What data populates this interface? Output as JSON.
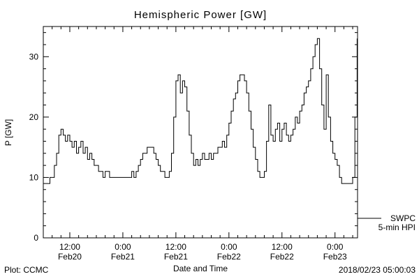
{
  "title": "Hemispheric Power [GW]",
  "footer": {
    "left": "Plot: CCMC",
    "right": "2018/02/23 05:00:03"
  },
  "legend": {
    "line1": "SWPC",
    "line2": "5-min HPI"
  },
  "colors": {
    "line": "#000000",
    "background": "#ffffff",
    "axis": "#000000"
  },
  "chart_data": {
    "type": "line",
    "title": "Hemispheric Power [GW]",
    "xlabel": "Date and Time",
    "ylabel": "P [GW]",
    "ylim": [
      0,
      35
    ],
    "xlim": [
      6,
      77.1
    ],
    "yticks": [
      0,
      10,
      20,
      30
    ],
    "xticks": [
      {
        "x": 12,
        "time": "12:00",
        "date": "Feb20"
      },
      {
        "x": 24,
        "time": "0:00",
        "date": "Feb21"
      },
      {
        "x": 36,
        "time": "12:00",
        "date": "Feb21"
      },
      {
        "x": 48,
        "time": "0:00",
        "date": "Feb22"
      },
      {
        "x": 60,
        "time": "12:00",
        "date": "Feb22"
      },
      {
        "x": 72,
        "time": "0:00",
        "date": "Feb23"
      }
    ],
    "x_unit": "hours since 2018/02/20 00:00 UT",
    "y_unit": "GW",
    "points": [
      [
        6,
        9
      ],
      [
        6.5,
        9
      ],
      [
        7,
        9
      ],
      [
        7.5,
        10
      ],
      [
        8,
        10
      ],
      [
        8.5,
        12
      ],
      [
        9,
        14
      ],
      [
        9.5,
        17
      ],
      [
        10,
        18
      ],
      [
        10.5,
        17
      ],
      [
        11,
        16
      ],
      [
        11.5,
        17
      ],
      [
        12,
        16
      ],
      [
        12.5,
        15
      ],
      [
        13,
        16
      ],
      [
        13.5,
        14
      ],
      [
        14,
        15
      ],
      [
        14.5,
        16
      ],
      [
        15,
        14
      ],
      [
        15.5,
        15
      ],
      [
        16,
        13
      ],
      [
        16.5,
        14
      ],
      [
        17,
        13
      ],
      [
        17.5,
        12
      ],
      [
        18,
        12
      ],
      [
        18.5,
        11
      ],
      [
        19,
        11
      ],
      [
        19.5,
        10
      ],
      [
        20,
        11
      ],
      [
        20.5,
        11
      ],
      [
        21,
        10
      ],
      [
        21.5,
        10
      ],
      [
        22,
        10
      ],
      [
        22.5,
        10
      ],
      [
        23,
        10
      ],
      [
        23.5,
        10
      ],
      [
        24,
        10
      ],
      [
        24.5,
        10
      ],
      [
        25,
        10
      ],
      [
        25.5,
        10
      ],
      [
        26,
        11
      ],
      [
        26.5,
        10
      ],
      [
        27,
        11
      ],
      [
        27.5,
        12
      ],
      [
        28,
        13
      ],
      [
        28.5,
        14
      ],
      [
        29,
        14
      ],
      [
        29.5,
        15
      ],
      [
        30,
        15
      ],
      [
        30.5,
        15
      ],
      [
        31,
        14
      ],
      [
        31.5,
        13
      ],
      [
        32,
        12
      ],
      [
        32.5,
        11
      ],
      [
        33,
        11
      ],
      [
        33.5,
        10
      ],
      [
        34,
        10
      ],
      [
        34.5,
        11
      ],
      [
        35,
        14
      ],
      [
        35.5,
        20
      ],
      [
        36,
        26
      ],
      [
        36.5,
        27
      ],
      [
        37,
        24
      ],
      [
        37.5,
        26
      ],
      [
        38,
        25
      ],
      [
        38.5,
        21
      ],
      [
        39,
        17
      ],
      [
        39.5,
        14
      ],
      [
        40,
        12
      ],
      [
        40.5,
        13
      ],
      [
        41,
        12
      ],
      [
        41.5,
        13
      ],
      [
        42,
        14
      ],
      [
        42.5,
        13
      ],
      [
        43,
        13
      ],
      [
        43.5,
        14
      ],
      [
        44,
        13
      ],
      [
        44.5,
        14
      ],
      [
        45,
        14
      ],
      [
        45.5,
        15
      ],
      [
        46,
        15
      ],
      [
        46.5,
        16
      ],
      [
        47,
        15
      ],
      [
        47.5,
        17
      ],
      [
        48,
        19
      ],
      [
        48.5,
        21
      ],
      [
        49,
        23
      ],
      [
        49.5,
        24
      ],
      [
        50,
        26
      ],
      [
        50.5,
        27
      ],
      [
        51,
        27
      ],
      [
        51.5,
        26
      ],
      [
        52,
        24
      ],
      [
        52.5,
        21
      ],
      [
        53,
        18
      ],
      [
        53.5,
        15
      ],
      [
        54,
        13
      ],
      [
        54.5,
        11
      ],
      [
        55,
        10
      ],
      [
        55.5,
        10
      ],
      [
        56,
        11
      ],
      [
        56.5,
        16
      ],
      [
        57,
        22
      ],
      [
        57.5,
        17
      ],
      [
        58,
        16
      ],
      [
        58.5,
        18
      ],
      [
        59,
        19
      ],
      [
        59.5,
        16
      ],
      [
        60,
        18
      ],
      [
        60.5,
        19
      ],
      [
        61,
        17
      ],
      [
        61.5,
        16
      ],
      [
        62,
        17
      ],
      [
        62.5,
        18
      ],
      [
        63,
        20
      ],
      [
        63.5,
        19
      ],
      [
        64,
        21
      ],
      [
        64.5,
        22
      ],
      [
        65,
        24
      ],
      [
        65.5,
        25
      ],
      [
        66,
        26
      ],
      [
        66.5,
        28
      ],
      [
        67,
        30
      ],
      [
        67.5,
        32
      ],
      [
        68,
        33
      ],
      [
        68.5,
        28
      ],
      [
        69,
        22
      ],
      [
        69.5,
        18
      ],
      [
        70,
        27
      ],
      [
        70.5,
        20
      ],
      [
        71,
        16
      ],
      [
        71.5,
        14
      ],
      [
        72,
        13
      ],
      [
        72.5,
        12
      ],
      [
        73,
        10
      ],
      [
        73.5,
        9
      ],
      [
        74,
        9
      ],
      [
        74.5,
        9
      ],
      [
        75,
        9
      ],
      [
        75.5,
        9
      ],
      [
        76,
        10
      ],
      [
        76.5,
        20
      ],
      [
        77,
        33
      ]
    ]
  }
}
